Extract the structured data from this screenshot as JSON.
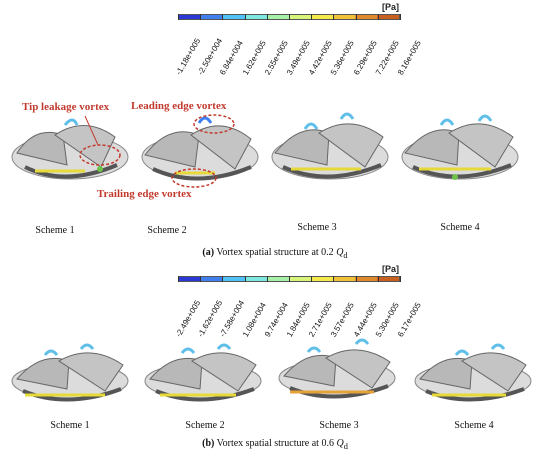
{
  "colorbar_top": {
    "unit": "[Pa]",
    "ticks": [
      "-1.18e+005",
      "-2.50e+004",
      "6.84e+004",
      "1.62e+005",
      "2.55e+005",
      "3.49e+005",
      "4.42e+005",
      "5.36e+005",
      "6.29e+005",
      "7.22e+005",
      "8.16e+005"
    ],
    "colors": [
      "#2a39d6",
      "#3f7ff0",
      "#4fc3f7",
      "#7de8e0",
      "#a8f0a8",
      "#d8f57a",
      "#f5ea4a",
      "#f0c23a",
      "#e08a2a",
      "#c8601e"
    ]
  },
  "colorbar_bottom": {
    "unit": "[Pa]",
    "ticks": [
      "-2.49e+005",
      "-1.62e+005",
      "-7.58e+004",
      "1.08e+004",
      "9.74e+004",
      "1.84e+005",
      "2.71e+005",
      "3.57e+005",
      "4.44e+005",
      "5.30e+005",
      "6.17e+005"
    ],
    "colors": [
      "#2a39d6",
      "#3f7ff0",
      "#4fc3f7",
      "#7de8e0",
      "#a8f0a8",
      "#d8f57a",
      "#f5ea4a",
      "#f0c23a",
      "#e08a2a",
      "#c8601e"
    ]
  },
  "annotations": {
    "tip_leakage": "Tip leakage vortex",
    "leading_edge": "Leading edge vortex",
    "trailing_edge": "Trailing edge vortex"
  },
  "top_schemes": [
    "Scheme 1",
    "Scheme 2",
    "Scheme 3",
    "Scheme 4"
  ],
  "bottom_schemes": [
    "Scheme 1",
    "Scheme 2",
    "Scheme 3",
    "Scheme 4"
  ],
  "caption_a": {
    "prefix": "(a)",
    "text": " Vortex spatial structure at 0.2 ",
    "q": "Q",
    "sub": "d"
  },
  "caption_b": {
    "prefix": "(b)",
    "text": " Vortex spatial structure at 0.6 ",
    "q": "Q",
    "sub": "d"
  }
}
